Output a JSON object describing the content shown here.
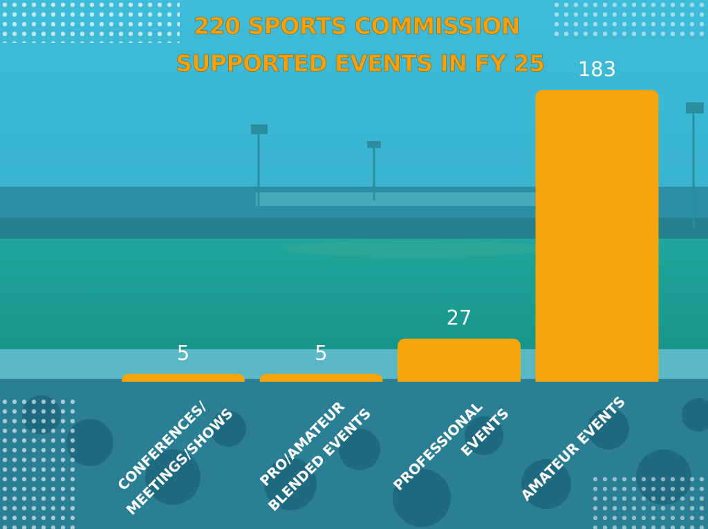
{
  "chart_data": {
    "type": "bar",
    "title_lines": [
      "220 SPORTS COMMISSION",
      "SUPPORTED EVENTS IN FY 25"
    ],
    "categories": [
      [
        "CONFERENCES/",
        "MEETINGS/SHOWS"
      ],
      [
        "PRO/AMATEUR",
        "BLENDED EVENTS"
      ],
      [
        "PROFESSIONAL",
        "EVENTS"
      ],
      [
        "AMATEUR EVENTS"
      ]
    ],
    "values": [
      5,
      5,
      27,
      183
    ],
    "value_labels": [
      "5",
      "5",
      "27",
      "183"
    ],
    "ylim": [
      0,
      183
    ],
    "grid": false,
    "bar_color": "#f5a40c"
  },
  "colors": {
    "overlay": "#2fb4d4",
    "sky": "#4cc0dc",
    "field": "#1a9a8c",
    "title": "#f2a20f"
  }
}
